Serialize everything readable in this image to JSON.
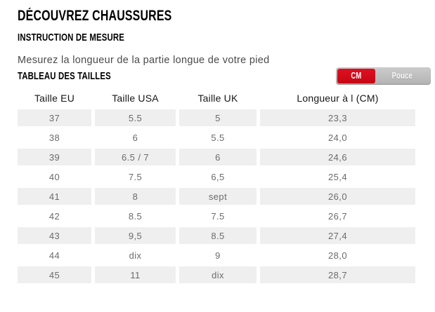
{
  "page": {
    "title": "DÉCOUVREZ CHAUSSURES",
    "subtitle": "INSTRUCTION DE MESURE",
    "instruction": "Mesurez la longueur de la partie longue de votre pied",
    "table_title": "TABLEAU DES TAILLES"
  },
  "unit_toggle": {
    "options": [
      {
        "label": "CM",
        "active": true
      },
      {
        "label": "Pouce",
        "active": false
      }
    ],
    "active_color": "#d20a19",
    "track_color": "#bfbfbf"
  },
  "size_table": {
    "columns": [
      "Taille EU",
      "Taille USA",
      "Taille UK",
      "Longueur à l (CM)"
    ],
    "rows": [
      [
        "37",
        "5.5",
        "5",
        "23,3"
      ],
      [
        "38",
        "6",
        "5.5",
        "24,0"
      ],
      [
        "39",
        "6.5 / 7",
        "6",
        "24,6"
      ],
      [
        "40",
        "7.5",
        "6,5",
        "25,4"
      ],
      [
        "41",
        "8",
        "sept",
        "26,0"
      ],
      [
        "42",
        "8.5",
        "7.5",
        "26,7"
      ],
      [
        "43",
        "9,5",
        "8.5",
        "27,4"
      ],
      [
        "44",
        "dix",
        "9",
        "28,0"
      ],
      [
        "45",
        "11",
        "dix",
        "28,7"
      ]
    ],
    "stripe_color": "#efefef"
  }
}
